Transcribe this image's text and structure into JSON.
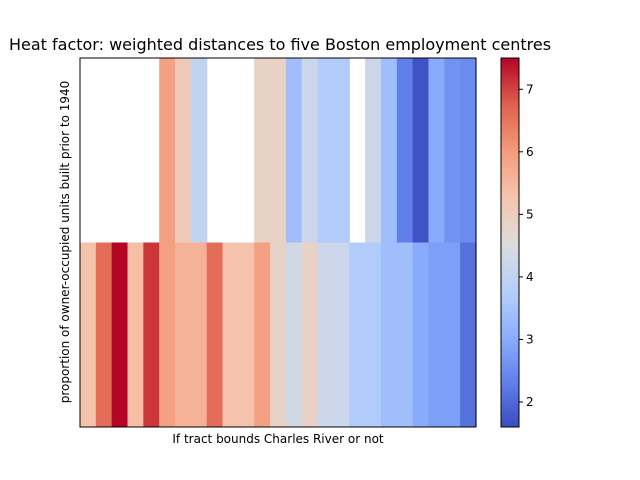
{
  "chart_data": {
    "type": "heatmap",
    "title": "Heat factor: weighted distances to five Boston employment centres",
    "xlabel": "If tract bounds Charles River or not",
    "ylabel": "proportion of owner-occupied units built prior to 1940",
    "colormap": "coolwarm",
    "colorbar": {
      "min": 1.6,
      "max": 7.5,
      "ticks": [
        2,
        3,
        4,
        5,
        6,
        7
      ],
      "tick_labels": [
        "2",
        "3",
        "4",
        "5",
        "6",
        "7"
      ]
    },
    "grid": false,
    "columns": 25,
    "upper_row": [
      null,
      null,
      null,
      null,
      null,
      5.9,
      5.1,
      4.0,
      null,
      null,
      null,
      4.9,
      4.9,
      3.4,
      4.2,
      3.7,
      3.7,
      null,
      4.2,
      3.4,
      2.3,
      1.7,
      3.0,
      2.6,
      2.5
    ],
    "lower_row": [
      5.3,
      6.6,
      7.5,
      5.4,
      7.1,
      5.9,
      5.6,
      5.6,
      6.6,
      5.3,
      5.3,
      5.9,
      4.9,
      4.3,
      4.9,
      4.2,
      4.2,
      3.7,
      3.7,
      3.4,
      3.4,
      3.0,
      2.8,
      2.8,
      2.1
    ]
  }
}
